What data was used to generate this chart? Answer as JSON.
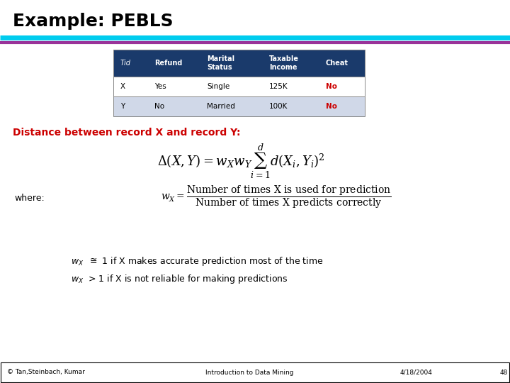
{
  "title": "Example: PEBLS",
  "title_color": "#000000",
  "title_fontsize": 18,
  "line1_color": "#00CCEE",
  "line2_color": "#993399",
  "bg_color": "#ffffff",
  "table_header_bg": "#1a3a6b",
  "table_header_color": "#ffffff",
  "table_row1_bg": "#ffffff",
  "table_row2_bg": "#d0d8e8",
  "table_cheat_color": "#cc0000",
  "distance_label": "Distance between record X and record Y:",
  "distance_label_color": "#cc0000",
  "where_label": "where:",
  "footer_left": "© Tan,Steinbach, Kumar",
  "footer_mid": "Introduction to Data Mining",
  "footer_right": "4/18/2004",
  "footer_page": "48"
}
